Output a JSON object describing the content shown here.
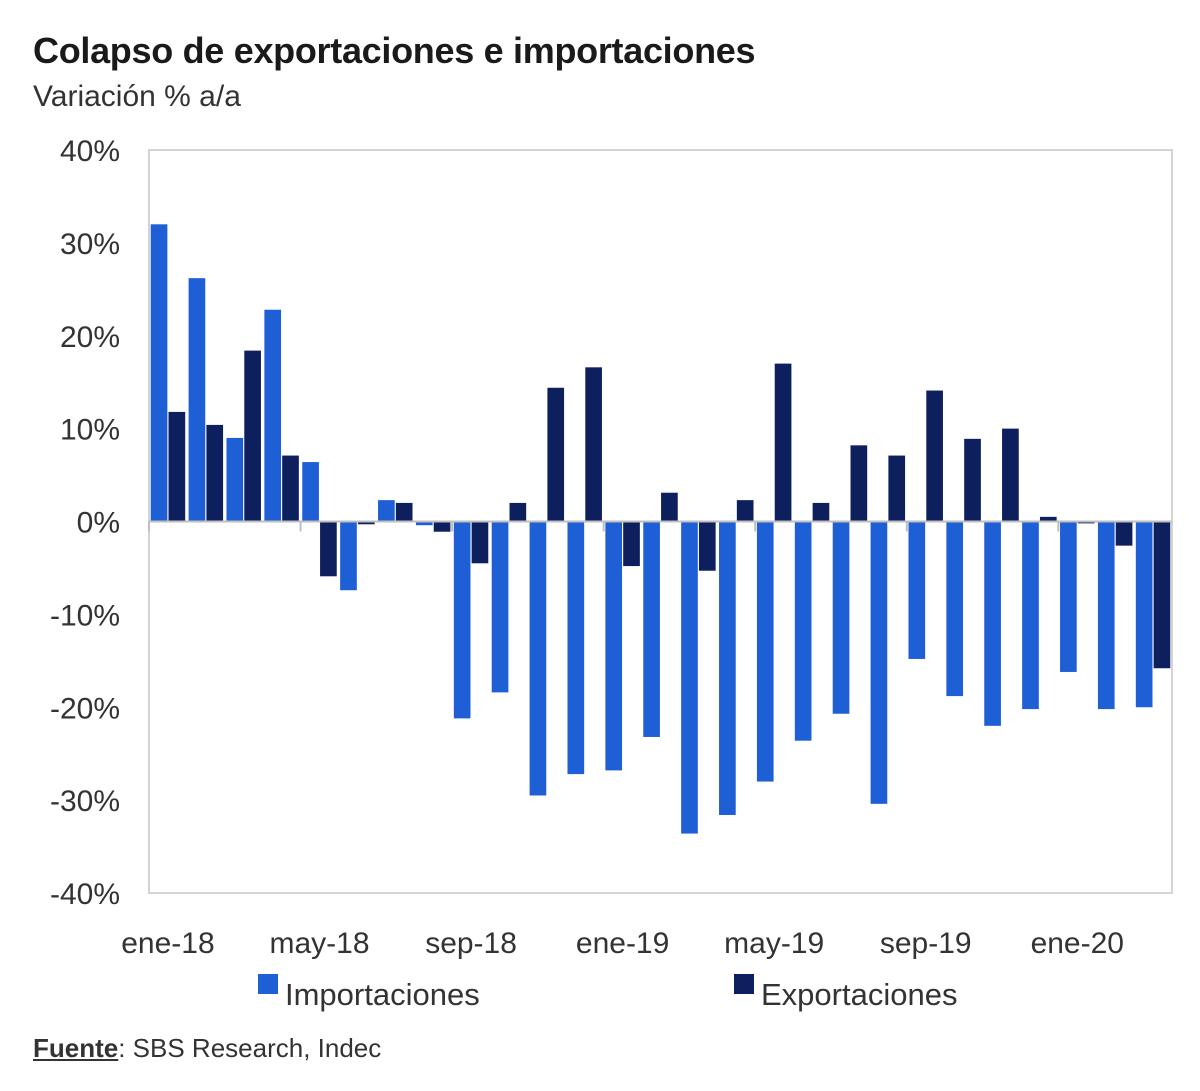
{
  "chart_data": {
    "type": "bar",
    "title": "Colapso de exportaciones e importaciones",
    "subtitle": "Variación % a/a",
    "ylim": [
      -40,
      40
    ],
    "yticks": [
      40,
      30,
      20,
      10,
      0,
      -10,
      -20,
      -30,
      -40
    ],
    "ytick_labels": [
      "40%",
      "30%",
      "20%",
      "10%",
      "0%",
      "-10%",
      "-20%",
      "-30%",
      "-40%"
    ],
    "x_tick_labels": [
      {
        "index": 0,
        "label": "ene-18"
      },
      {
        "index": 4,
        "label": "may-18"
      },
      {
        "index": 8,
        "label": "sep-18"
      },
      {
        "index": 12,
        "label": "ene-19"
      },
      {
        "index": 16,
        "label": "may-19"
      },
      {
        "index": 20,
        "label": "sep-19"
      },
      {
        "index": 24,
        "label": "ene-20"
      }
    ],
    "categories": [
      "ene-18",
      "feb-18",
      "mar-18",
      "abr-18",
      "may-18",
      "jun-18",
      "jul-18",
      "ago-18",
      "sep-18",
      "oct-18",
      "nov-18",
      "dic-18",
      "ene-19",
      "feb-19",
      "mar-19",
      "abr-19",
      "may-19",
      "jun-19",
      "jul-19",
      "ago-19",
      "sep-19",
      "oct-19",
      "nov-19",
      "dic-19",
      "ene-20",
      "feb-20",
      "mar-20"
    ],
    "series": [
      {
        "name": "Importaciones",
        "color": "#1f5fd6",
        "values": [
          32,
          26.2,
          9,
          22.8,
          6.4,
          -7.4,
          2.3,
          -0.4,
          -21.2,
          -18.4,
          -29.5,
          -27.2,
          -26.8,
          -23.2,
          -33.6,
          -31.6,
          -28,
          -23.6,
          -20.7,
          -30.4,
          -14.8,
          -18.8,
          -22,
          -20.2,
          -16.2,
          -20.2,
          -20
        ]
      },
      {
        "name": "Exportaciones",
        "color": "#0d1f5c",
        "values": [
          11.8,
          10.4,
          18.4,
          7.1,
          -5.9,
          -0.3,
          2,
          -1.1,
          -4.5,
          2,
          14.4,
          16.6,
          -4.8,
          3.1,
          -5.3,
          2.3,
          17,
          2,
          8.2,
          7.1,
          14.1,
          8.9,
          10,
          0.5,
          -0.2,
          -2.6,
          -15.8
        ]
      }
    ],
    "legend_position": "bottom",
    "grid": false
  },
  "source": {
    "label": "Fuente",
    "text": ": SBS Research, Indec"
  }
}
